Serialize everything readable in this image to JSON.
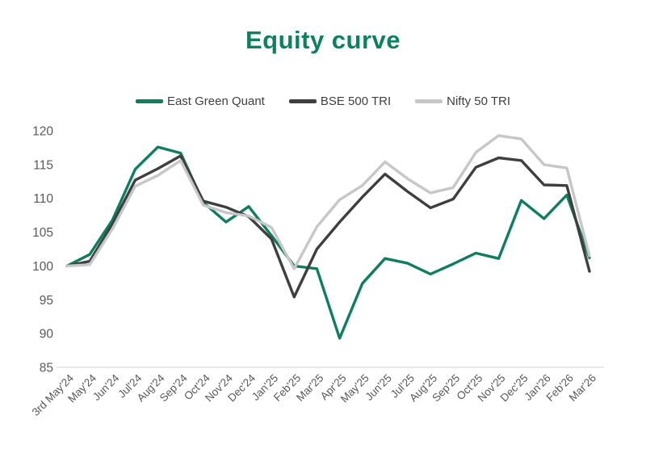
{
  "title": "Equity curve",
  "title_color": "#0e8160",
  "axis": {
    "tick_label_color": "#595959",
    "axis_line_color": "#d9d9d9"
  },
  "chart_data": {
    "type": "line",
    "title": "Equity curve",
    "categories": [
      "3rd May'24",
      "May'24",
      "Jun'24",
      "Jul'24",
      "Aug'24",
      "Sep'24",
      "Oct'24",
      "Nov'24",
      "Dec'24",
      "Jan'25",
      "Feb'25",
      "Mar'25",
      "Apr'25",
      "May'25",
      "Jun'25",
      "Jul'25",
      "Aug'25",
      "Sep'25",
      "Oct'25",
      "Nov'25",
      "Dec'25",
      "Jan'26",
      "Feb'26",
      "Mar'26"
    ],
    "series": [
      {
        "name": "East Green Quant",
        "color": "#0f7e60",
        "values": [
          100,
          101.7,
          106.8,
          114.3,
          117.6,
          116.7,
          109.4,
          106.5,
          108.8,
          104.5,
          100.0,
          99.6,
          89.3,
          97.4,
          101.1,
          100.4,
          98.8,
          100.3,
          101.9,
          101.1,
          109.7,
          107.0,
          110.5,
          101.2
        ]
      },
      {
        "name": "BSE 500 TRI",
        "color": "#3f3f3f",
        "values": [
          100,
          100.7,
          106.2,
          112.7,
          114.4,
          116.3,
          109.6,
          108.7,
          107.3,
          104.0,
          95.4,
          102.5,
          106.5,
          110.2,
          113.6,
          111.0,
          108.6,
          109.9,
          114.6,
          116.0,
          115.6,
          112.0,
          111.9,
          99.2
        ]
      },
      {
        "name": "Nifty 50 TRI",
        "color": "#c7c7c7",
        "values": [
          100,
          100.2,
          105.5,
          111.8,
          113.4,
          115.6,
          109.0,
          107.9,
          107.4,
          105.7,
          99.6,
          105.8,
          109.8,
          111.9,
          115.4,
          112.9,
          110.8,
          111.6,
          116.8,
          119.3,
          118.8,
          115.0,
          114.5,
          101.5
        ]
      }
    ],
    "ylim": [
      85,
      120
    ],
    "yticks": [
      85,
      90,
      95,
      100,
      105,
      110,
      115,
      120
    ],
    "grid": false,
    "legend_position": "top"
  }
}
